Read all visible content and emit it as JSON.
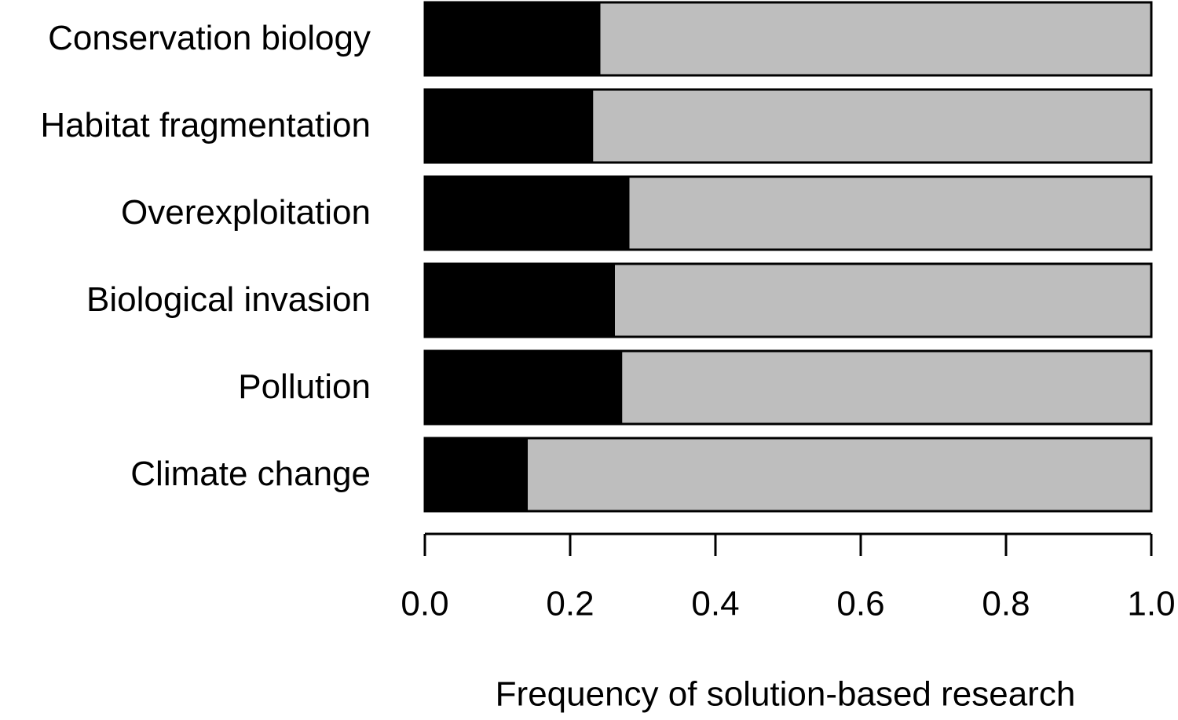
{
  "chart_data": {
    "type": "stacked-barh",
    "categories": [
      "Conservation biology",
      "Habitat fragmentation",
      "Overexploitation",
      "Biological invasion",
      "Pollution",
      "Climate change"
    ],
    "series": [
      {
        "color": "#000000",
        "values": [
          0.24,
          0.23,
          0.28,
          0.26,
          0.27,
          0.14
        ]
      },
      {
        "color": "#bebebe",
        "values": [
          0.76,
          0.77,
          0.72,
          0.74,
          0.73,
          0.86
        ]
      }
    ],
    "xlim": [
      0,
      1
    ],
    "xticks": [
      {
        "value": 0,
        "label": "0.0"
      },
      0.2,
      0.4,
      0.6,
      0.8,
      {
        "value": 1,
        "label": "1.0"
      }
    ],
    "xlabel": "Frequency of solution-based research"
  }
}
